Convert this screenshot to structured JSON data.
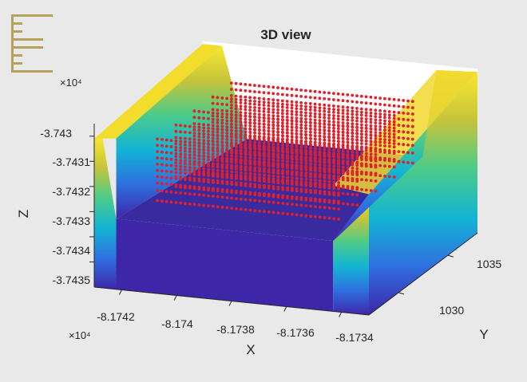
{
  "toolbar": {
    "icon": "menu-lines-icon",
    "color": "#b8a15a"
  },
  "chart_data": {
    "type": "scatter",
    "title": "3D view",
    "xlabel": "X",
    "ylabel": "Y",
    "zlabel": "Z",
    "x_multiplier": "×10⁴",
    "z_multiplier": "×10⁴",
    "x_ticks": [
      "-8.1742",
      "-8.174",
      "-8.1738",
      "-8.1736",
      "-8.1734"
    ],
    "y_ticks": [
      "1030",
      "1035"
    ],
    "z_ticks": [
      "-3.743",
      "-3.7431",
      "-3.7432",
      "-3.7433",
      "-3.7434",
      "-3.7435"
    ],
    "xlim": [
      -81743,
      -81733
    ],
    "ylim": [
      1027,
      1038
    ],
    "zlim": [
      -37436,
      -37429.5
    ],
    "surface_colormap": [
      "#3e26a8",
      "#2f6fe0",
      "#13b4d4",
      "#4bcb8a",
      "#c6c43b",
      "#f9e72e"
    ],
    "marker_color": "#e0202a",
    "series": [
      {
        "type": "surface",
        "description_free": true
      },
      {
        "type": "scatter",
        "layer_count": 10
      }
    ],
    "point_layers_z": [
      -37430.7,
      -37430.95,
      -37431.2,
      -37431.45,
      -37431.7,
      -37431.95,
      -37432.2,
      -37432.45,
      -37432.75,
      -37433.15
    ]
  }
}
